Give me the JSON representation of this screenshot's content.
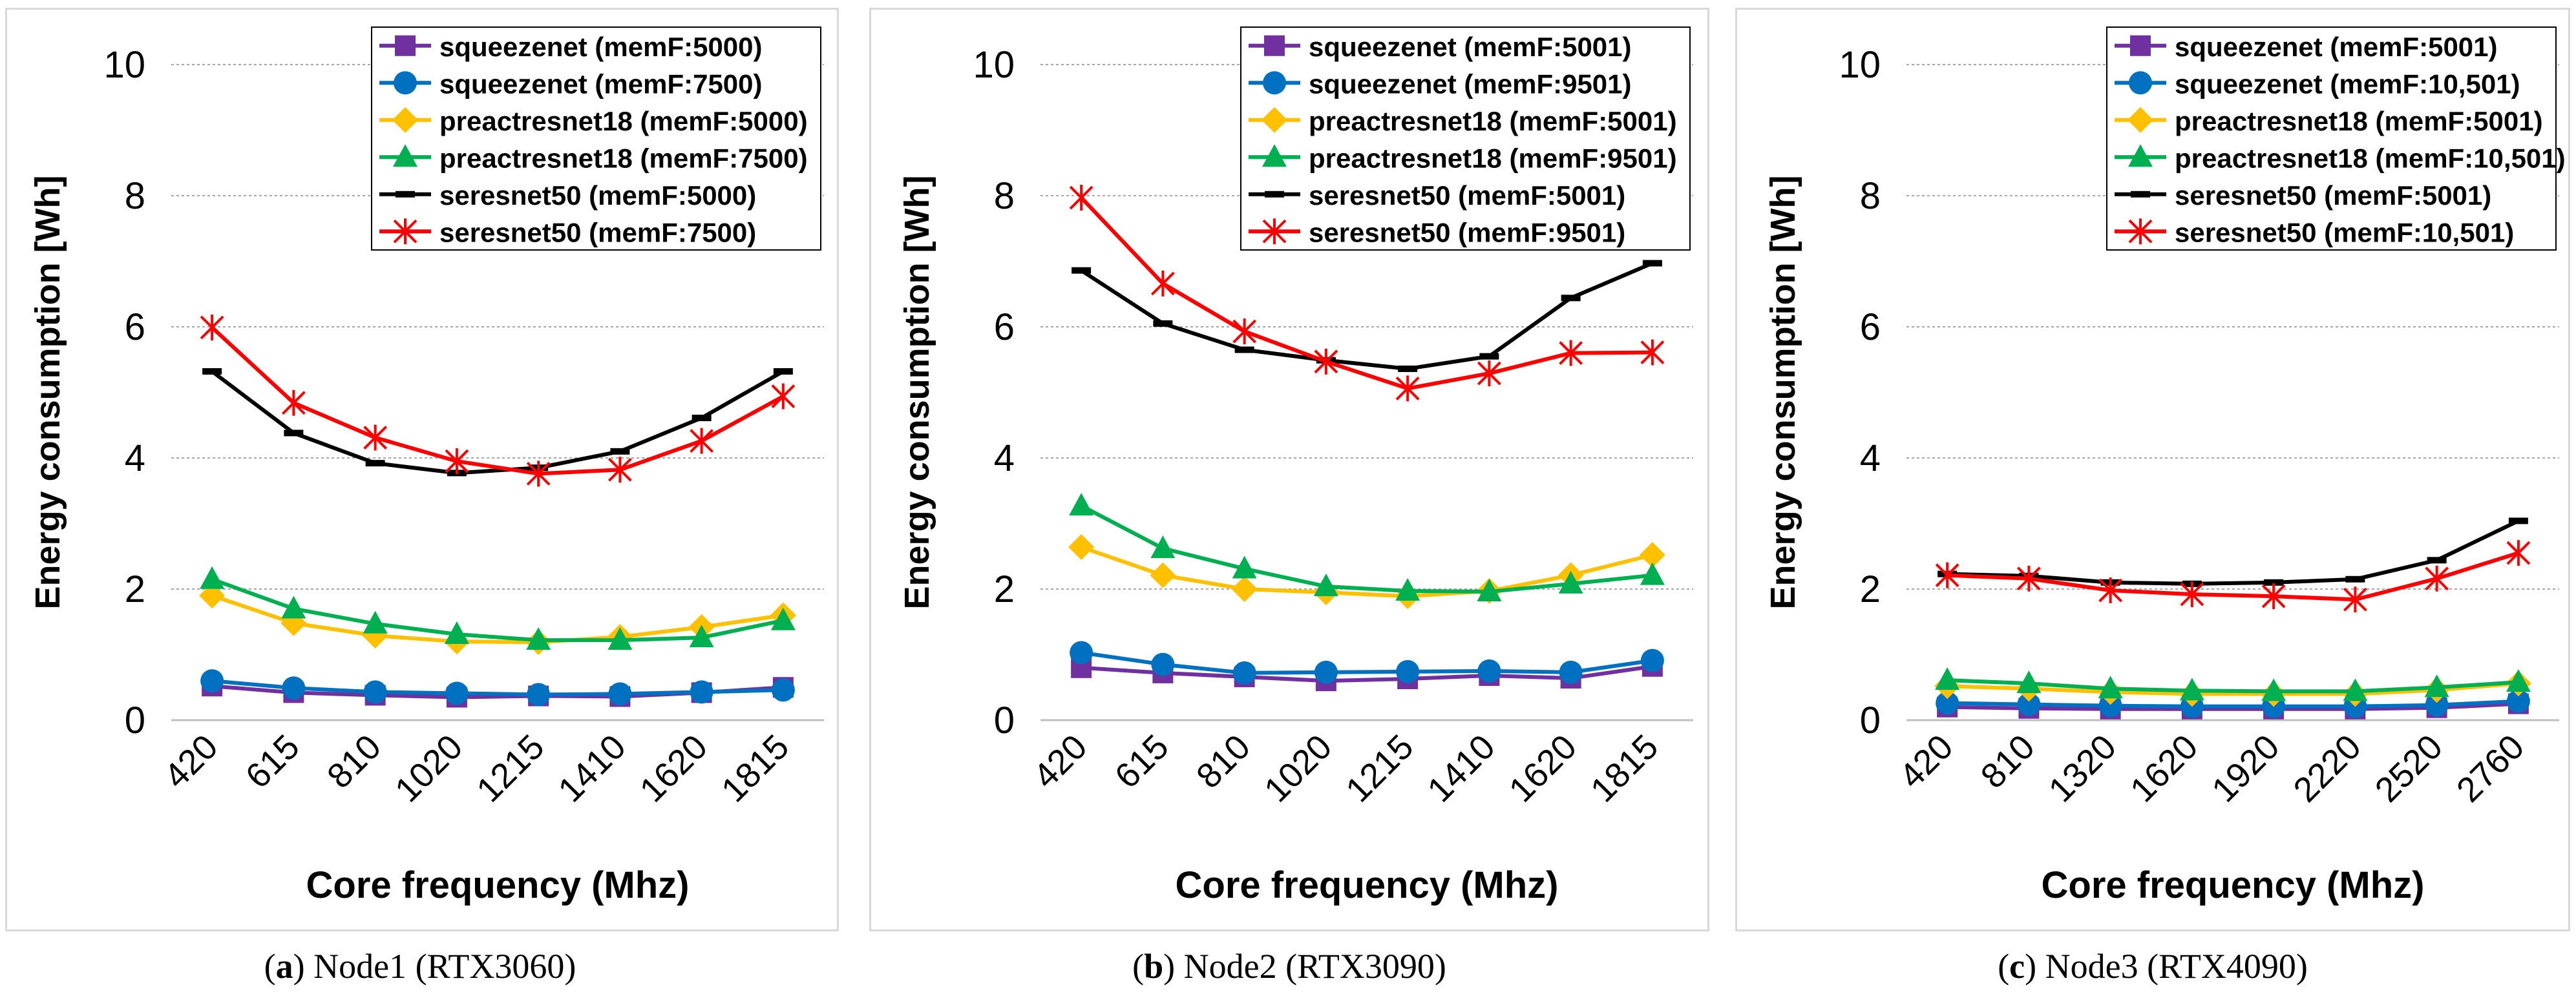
{
  "chart_data": [
    {
      "type": "line",
      "caption_letter": "a",
      "caption_text": "Node1 (RTX3060)",
      "xlabel": "Core frequency (Mhz)",
      "ylabel": "Energy consumption [Wh]",
      "categories": [
        "420",
        "615",
        "810",
        "1020",
        "1215",
        "1410",
        "1620",
        "1815"
      ],
      "ylim": [
        0,
        10
      ],
      "yticks": [
        "0",
        "2",
        "4",
        "6",
        "8",
        "10"
      ],
      "grid": true,
      "legend_position": "top-right",
      "series": [
        {
          "name": "squeezenet (memF:5000)",
          "color": "#7030a0",
          "marker": "square",
          "values": [
            0.52,
            0.42,
            0.38,
            0.35,
            0.37,
            0.36,
            0.42,
            0.5
          ]
        },
        {
          "name": "squeezenet (memF:7500)",
          "color": "#0070c0",
          "marker": "circle",
          "values": [
            0.6,
            0.49,
            0.43,
            0.41,
            0.39,
            0.4,
            0.43,
            0.46
          ]
        },
        {
          "name": "preactresnet18 (memF:5000)",
          "color": "#ffc000",
          "marker": "diamond",
          "values": [
            1.9,
            1.48,
            1.29,
            1.2,
            1.19,
            1.27,
            1.42,
            1.6
          ]
        },
        {
          "name": "preactresnet18 (memF:7500)",
          "color": "#00b050",
          "marker": "triangle",
          "values": [
            2.15,
            1.7,
            1.47,
            1.31,
            1.22,
            1.22,
            1.26,
            1.52
          ]
        },
        {
          "name": "seresnet50 (memF:5000)",
          "color": "#000000",
          "marker": "dash",
          "values": [
            5.32,
            4.38,
            3.92,
            3.77,
            3.85,
            4.1,
            4.61,
            5.32
          ]
        },
        {
          "name": "seresnet50 (memF:7500)",
          "color": "#ff0000",
          "marker": "star",
          "values": [
            5.99,
            4.84,
            4.31,
            3.95,
            3.76,
            3.82,
            4.26,
            4.94
          ]
        }
      ]
    },
    {
      "type": "line",
      "caption_letter": "b",
      "caption_text": "Node2 (RTX3090)",
      "xlabel": "Core frequency (Mhz)",
      "ylabel": "Energy consumption [Wh]",
      "categories": [
        "420",
        "615",
        "810",
        "1020",
        "1215",
        "1410",
        "1620",
        "1815"
      ],
      "ylim": [
        0,
        10
      ],
      "yticks": [
        "0",
        "2",
        "4",
        "6",
        "8",
        "10"
      ],
      "grid": true,
      "legend_position": "top-right",
      "series": [
        {
          "name": "squeezenet (memF:5001)",
          "color": "#7030a0",
          "marker": "square",
          "values": [
            0.8,
            0.72,
            0.66,
            0.6,
            0.63,
            0.68,
            0.64,
            0.82
          ]
        },
        {
          "name": "squeezenet (memF:9501)",
          "color": "#0070c0",
          "marker": "circle",
          "values": [
            1.03,
            0.85,
            0.72,
            0.73,
            0.74,
            0.75,
            0.73,
            0.91
          ]
        },
        {
          "name": "preactresnet18 (memF:5001)",
          "color": "#ffc000",
          "marker": "diamond",
          "values": [
            2.64,
            2.21,
            2.0,
            1.95,
            1.89,
            1.97,
            2.21,
            2.52
          ]
        },
        {
          "name": "preactresnet18 (memF:9501)",
          "color": "#00b050",
          "marker": "triangle",
          "values": [
            3.27,
            2.62,
            2.31,
            2.04,
            1.97,
            1.96,
            2.08,
            2.21
          ]
        },
        {
          "name": "seresnet50 (memF:5001)",
          "color": "#000000",
          "marker": "dash",
          "values": [
            6.86,
            6.05,
            5.65,
            5.49,
            5.36,
            5.55,
            6.44,
            6.97
          ]
        },
        {
          "name": "seresnet50 (memF:9501)",
          "color": "#ff0000",
          "marker": "star",
          "values": [
            7.97,
            6.66,
            5.93,
            5.47,
            5.06,
            5.29,
            5.6,
            5.61
          ]
        }
      ]
    },
    {
      "type": "line",
      "caption_letter": "c",
      "caption_text": "Node3 (RTX4090)",
      "xlabel": "Core frequency (Mhz)",
      "ylabel": "Energy consumption [Wh]",
      "categories": [
        "420",
        "810",
        "1320",
        "1620",
        "1920",
        "2220",
        "2520",
        "2760"
      ],
      "ylim": [
        0,
        10
      ],
      "yticks": [
        "0",
        "2",
        "4",
        "6",
        "8",
        "10"
      ],
      "grid": true,
      "legend_position": "top-right",
      "series": [
        {
          "name": "squeezenet (memF:5001)",
          "color": "#7030a0",
          "marker": "square",
          "values": [
            0.2,
            0.18,
            0.17,
            0.17,
            0.17,
            0.17,
            0.19,
            0.25
          ]
        },
        {
          "name": "squeezenet (memF:10,501)",
          "color": "#0070c0",
          "marker": "circle",
          "values": [
            0.26,
            0.24,
            0.22,
            0.21,
            0.21,
            0.21,
            0.23,
            0.29
          ]
        },
        {
          "name": "preactresnet18 (memF:5001)",
          "color": "#ffc000",
          "marker": "diamond",
          "values": [
            0.52,
            0.48,
            0.43,
            0.4,
            0.4,
            0.4,
            0.46,
            0.56
          ]
        },
        {
          "name": "preactresnet18 (memF:10,501)",
          "color": "#00b050",
          "marker": "triangle",
          "values": [
            0.61,
            0.56,
            0.48,
            0.45,
            0.44,
            0.44,
            0.5,
            0.58
          ]
        },
        {
          "name": "seresnet50 (memF:5001)",
          "color": "#000000",
          "marker": "dash",
          "values": [
            2.23,
            2.2,
            2.1,
            2.08,
            2.1,
            2.15,
            2.44,
            3.04
          ]
        },
        {
          "name": "seresnet50 (memF:10,501)",
          "color": "#ff0000",
          "marker": "star",
          "values": [
            2.21,
            2.16,
            1.98,
            1.92,
            1.89,
            1.84,
            2.16,
            2.55
          ]
        }
      ]
    }
  ]
}
